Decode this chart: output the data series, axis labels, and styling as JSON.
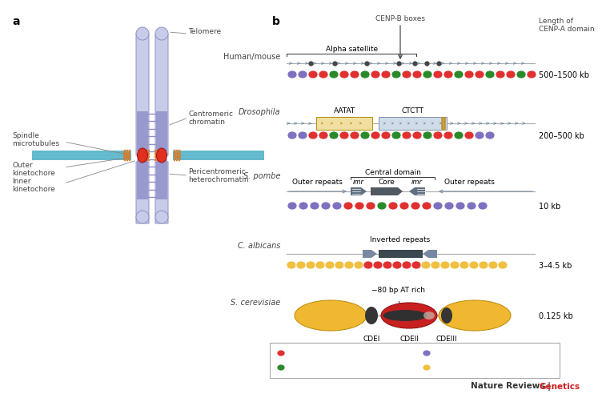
{
  "fig_width": 7.0,
  "fig_height": 4.88,
  "bg_color": "#ffffff",
  "colors": {
    "red_nuc": "#e03030",
    "green_nuc": "#2a8a2a",
    "purple_nuc": "#8070c0",
    "yellow_nuc": "#f0c040",
    "arrow_color": "#7090b0",
    "dark_dot": "#555555",
    "teal_line": "#60b8cc",
    "chrom_fill": "#9090c8",
    "chrom_light": "#c8cce8",
    "kinet_red": "#e03020",
    "orange_wave": "#e07820",
    "pombe_dark": "#607080",
    "calb_dark": "#607080",
    "scer_yellow": "#f0b830",
    "scer_red": "#c82020",
    "journal_red": "#cc2020",
    "legend_border": "#aaaaaa",
    "label_gray": "#444444"
  },
  "species_labels": [
    "Human/mouse",
    "Drosophila",
    "S. pombe",
    "C. albicans",
    "S. cerevisiae"
  ],
  "length_labels": [
    "500–1500 kb",
    "200–500 kb",
    "10 kb",
    "3–4.5 kb",
    "0.125 kb"
  ]
}
